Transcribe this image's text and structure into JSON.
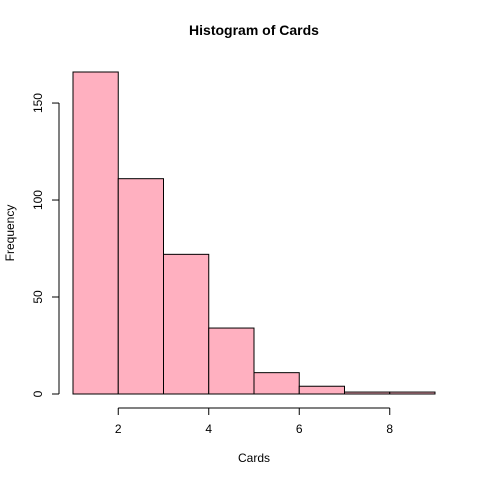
{
  "chart_data": {
    "type": "bar",
    "title": "Histogram of Cards",
    "xlabel": "Cards",
    "ylabel": "Frequency",
    "bins": [
      {
        "start": 1,
        "end": 2,
        "value": 166
      },
      {
        "start": 2,
        "end": 3,
        "value": 111
      },
      {
        "start": 3,
        "end": 4,
        "value": 72
      },
      {
        "start": 4,
        "end": 5,
        "value": 34
      },
      {
        "start": 5,
        "end": 6,
        "value": 11
      },
      {
        "start": 6,
        "end": 7,
        "value": 4
      },
      {
        "start": 7,
        "end": 8,
        "value": 1
      },
      {
        "start": 8,
        "end": 9,
        "value": 1
      }
    ],
    "xlim": [
      1,
      9
    ],
    "ylim": [
      0,
      166
    ],
    "x_ticks": [
      2,
      4,
      6,
      8
    ],
    "y_ticks": [
      0,
      50,
      100,
      150
    ],
    "bar_color": "#ffb0c0",
    "grid": false,
    "legend": "none"
  }
}
